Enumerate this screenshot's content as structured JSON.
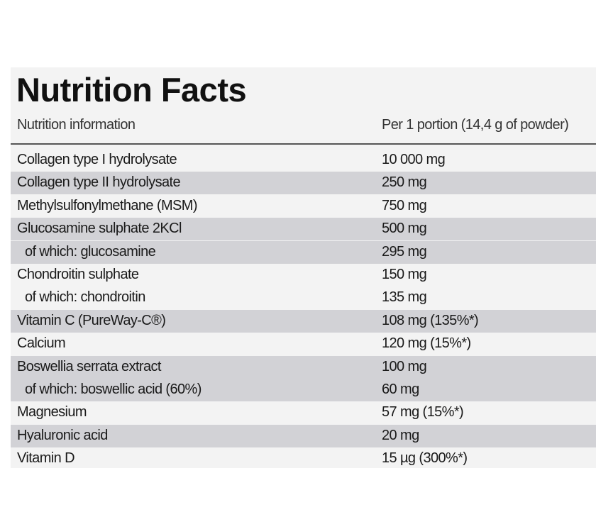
{
  "header": {
    "title": "Nutrition Facts",
    "column_left": "Nutrition information",
    "column_right": "Per 1 portion (14,4 g of powder)"
  },
  "table": {
    "rows": [
      [
        "Collagen type I hydrolysate",
        "10 000 mg"
      ],
      [
        "Collagen type II hydrolysate",
        "250 mg"
      ],
      [
        "Methylsulfonylmethane (MSM)",
        "750 mg"
      ],
      [
        "Glucosamine sulphate 2KCl",
        "500 mg"
      ],
      [
        "of which: glucosamine",
        "295 mg"
      ],
      [
        "Chondroitin sulphate",
        "150 mg"
      ],
      [
        "of which: chondroitin",
        "135 mg"
      ],
      [
        "Vitamin C (PureWay-C®)",
        "108 mg (135%*)"
      ],
      [
        "Calcium",
        "120 mg (15%*)"
      ],
      [
        "Boswellia serrata extract",
        "100 mg"
      ],
      [
        "of which: boswellic acid (60%)",
        "60 mg"
      ],
      [
        "Magnesium",
        "57 mg (15%*)"
      ],
      [
        "Hyaluronic acid",
        "20 mg"
      ],
      [
        "Vitamin D",
        "15 µg (300%*)"
      ]
    ]
  }
}
